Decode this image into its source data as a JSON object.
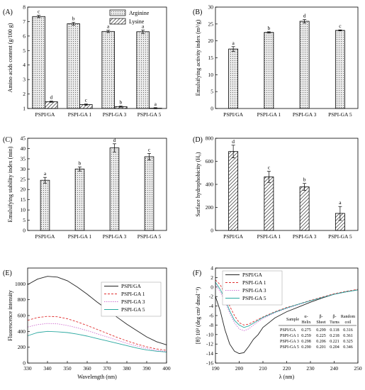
{
  "chart_data": [
    {
      "panel": "(A)",
      "type": "bar",
      "categories": [
        "PSPI/GA",
        "PSPI-GA 1",
        "PSPI-GA 3",
        "PSPI-GA 5"
      ],
      "ylabel": "Amino acids content (g/100 g)",
      "ylim": [
        1,
        8
      ],
      "yticks": [
        1,
        2,
        3,
        4,
        5,
        6,
        7,
        8
      ],
      "legend_position": "top-right",
      "series": [
        {
          "name": "Arginine",
          "values": [
            7.35,
            6.85,
            6.32,
            6.3
          ],
          "errors": [
            0.08,
            0.1,
            0.08,
            0.12
          ],
          "letters": [
            "c",
            "b",
            "a",
            "a"
          ],
          "pattern": "dots"
        },
        {
          "name": "Lysine",
          "values": [
            1.47,
            1.27,
            1.13,
            1.02
          ],
          "errors": [
            0.04,
            0.04,
            0.04,
            0.04
          ],
          "letters": [
            "d",
            "c",
            "b",
            "a"
          ],
          "pattern": "hatch"
        }
      ]
    },
    {
      "panel": "(B)",
      "type": "bar",
      "categories": [
        "PSPI/GA",
        "PSPI-GA 1",
        "PSPI-GA 3",
        "PSPI-GA 5"
      ],
      "ylabel": "Emulsifying activity index (m²/g)",
      "ylim": [
        0,
        30
      ],
      "yticks": [
        0,
        5,
        10,
        15,
        20,
        25,
        30
      ],
      "series": [
        {
          "values": [
            17.6,
            22.5,
            25.8,
            23.1
          ],
          "errors": [
            0.7,
            0.2,
            0.5,
            0.15
          ],
          "letters": [
            "a",
            "b",
            "d",
            "c"
          ],
          "pattern": "dots"
        }
      ]
    },
    {
      "panel": "(C)",
      "type": "bar",
      "categories": [
        "PSPI/GA",
        "PSPI-GA 1",
        "PSPI-GA 3",
        "PSPI-GA 5"
      ],
      "ylabel": "Emulsifying stability index (min)",
      "ylim": [
        0,
        45
      ],
      "yticks": [
        0,
        5,
        10,
        15,
        20,
        25,
        30,
        35,
        40,
        45
      ],
      "series": [
        {
          "values": [
            24.5,
            30.0,
            40.3,
            36.0
          ],
          "errors": [
            1.4,
            1.0,
            2.0,
            1.6
          ],
          "letters": [
            "a",
            "b",
            "d",
            "c"
          ],
          "pattern": "dots"
        }
      ]
    },
    {
      "panel": "(D)",
      "type": "bar",
      "categories": [
        "PSPI/GA",
        "PSPI-GA 1",
        "PSPI-GA 3",
        "PSPI-GA 5"
      ],
      "ylabel": "Surface hydrophobicity (H₀)",
      "ylim": [
        0,
        800
      ],
      "yticks": [
        0,
        200,
        400,
        600,
        800
      ],
      "series": [
        {
          "values": [
            685,
            465,
            378,
            148
          ],
          "errors": [
            55,
            48,
            30,
            60
          ],
          "letters": [
            "d",
            "c",
            "b",
            "a"
          ],
          "pattern": "hatch"
        }
      ]
    },
    {
      "panel": "(E)",
      "type": "line",
      "xlabel": "Wavelength (nm)",
      "ylabel": "Fluorescence intensity",
      "xlim": [
        330,
        400
      ],
      "ylim": [
        0,
        1200
      ],
      "xticks": [
        330,
        340,
        350,
        360,
        370,
        380,
        390,
        400
      ],
      "yticks": [
        0,
        200,
        400,
        600,
        800,
        1000
      ],
      "legend_position": "top-right",
      "x": [
        330,
        335,
        340,
        345,
        350,
        355,
        360,
        365,
        370,
        375,
        380,
        385,
        390,
        395,
        400
      ],
      "series": [
        {
          "name": "PSPI/GA",
          "color": "#222222",
          "dash": "",
          "values": [
            990,
            1060,
            1095,
            1085,
            1040,
            960,
            870,
            770,
            680,
            580,
            490,
            410,
            330,
            270,
            230
          ]
        },
        {
          "name": "PSPI-GA 1",
          "color": "#e03030",
          "dash": "3,2",
          "values": [
            540,
            575,
            590,
            585,
            560,
            520,
            475,
            425,
            375,
            325,
            280,
            240,
            205,
            178,
            160
          ]
        },
        {
          "name": "PSPI-GA 3",
          "color": "#d070d0",
          "dash": "1.5,1.5",
          "values": [
            455,
            485,
            500,
            495,
            475,
            445,
            410,
            370,
            330,
            290,
            250,
            215,
            185,
            160,
            145
          ]
        },
        {
          "name": "PSPI-GA 5",
          "color": "#2aa8a0",
          "dash": "",
          "values": [
            345,
            385,
            400,
            395,
            385,
            365,
            340,
            310,
            280,
            250,
            220,
            190,
            165,
            150,
            140
          ]
        }
      ]
    },
    {
      "panel": "(F)",
      "type": "line",
      "xlabel": "λ (nm)",
      "ylabel": "[θ]·10³ (deg cm² dmol⁻¹)",
      "xlim": [
        190,
        250
      ],
      "ylim": [
        -16,
        4
      ],
      "xticks": [
        190,
        200,
        210,
        220,
        230,
        240,
        250
      ],
      "yticks": [
        -16,
        -14,
        -12,
        -10,
        -8,
        -6,
        -4,
        -2,
        0,
        2,
        4
      ],
      "legend_position": "top-left",
      "x": [
        190,
        192,
        194,
        196,
        198,
        200,
        202,
        204,
        206,
        208,
        210,
        215,
        220,
        225,
        230,
        235,
        240,
        245,
        250
      ],
      "series": [
        {
          "name": "PSPI/GA",
          "color": "#222222",
          "dash": "",
          "values": [
            -2,
            -5,
            -9,
            -12,
            -13.5,
            -14,
            -13.8,
            -12.5,
            -11,
            -10,
            -8.5,
            -6.5,
            -5.2,
            -4.2,
            -3.2,
            -2.3,
            -1.5,
            -1,
            -0.6
          ]
        },
        {
          "name": "PSPI-GA 1",
          "color": "#e03030",
          "dash": "3,2",
          "values": [
            1.5,
            0.5,
            -1.5,
            -4,
            -6,
            -7.5,
            -8,
            -7.8,
            -7.3,
            -6.8,
            -6.3,
            -5.2,
            -4.3,
            -3.6,
            -2.8,
            -2.1,
            -1.4,
            -0.9,
            -0.5
          ]
        },
        {
          "name": "PSPI-GA 3",
          "color": "#d070d0",
          "dash": "1.5,1.5",
          "values": [
            0.5,
            -1,
            -3,
            -5.5,
            -7.5,
            -8.8,
            -9.2,
            -8.8,
            -8,
            -7.3,
            -6.6,
            -5.4,
            -4.5,
            -3.7,
            -2.9,
            -2.2,
            -1.5,
            -1,
            -0.6
          ]
        },
        {
          "name": "PSPI-GA 5",
          "color": "#2aa8a0",
          "dash": "",
          "values": [
            1,
            -0.5,
            -2.5,
            -5,
            -7,
            -8,
            -8.5,
            -8.2,
            -7.6,
            -7,
            -6.4,
            -5.3,
            -4.4,
            -3.6,
            -2.9,
            -2.2,
            -1.5,
            -1,
            -0.6
          ]
        }
      ],
      "table": {
        "headers": [
          "Sample",
          "α-\nHelix",
          "β-\nSheet",
          "β-\nTurns",
          "Random\ncoil"
        ],
        "rows": [
          [
            "PSPI/GA",
            "0.275",
            "0.299",
            "0.118",
            "0.316"
          ],
          [
            "PSPI-GA 1",
            "0.259",
            "0.225",
            "0.218",
            "0.361"
          ],
          [
            "PSPI-GA 3",
            "0.298",
            "0.206",
            "0.221",
            "0.325"
          ],
          [
            "PSPI-GA 5",
            "0.290",
            "0.201",
            "0.204",
            "0.346"
          ]
        ]
      }
    }
  ]
}
